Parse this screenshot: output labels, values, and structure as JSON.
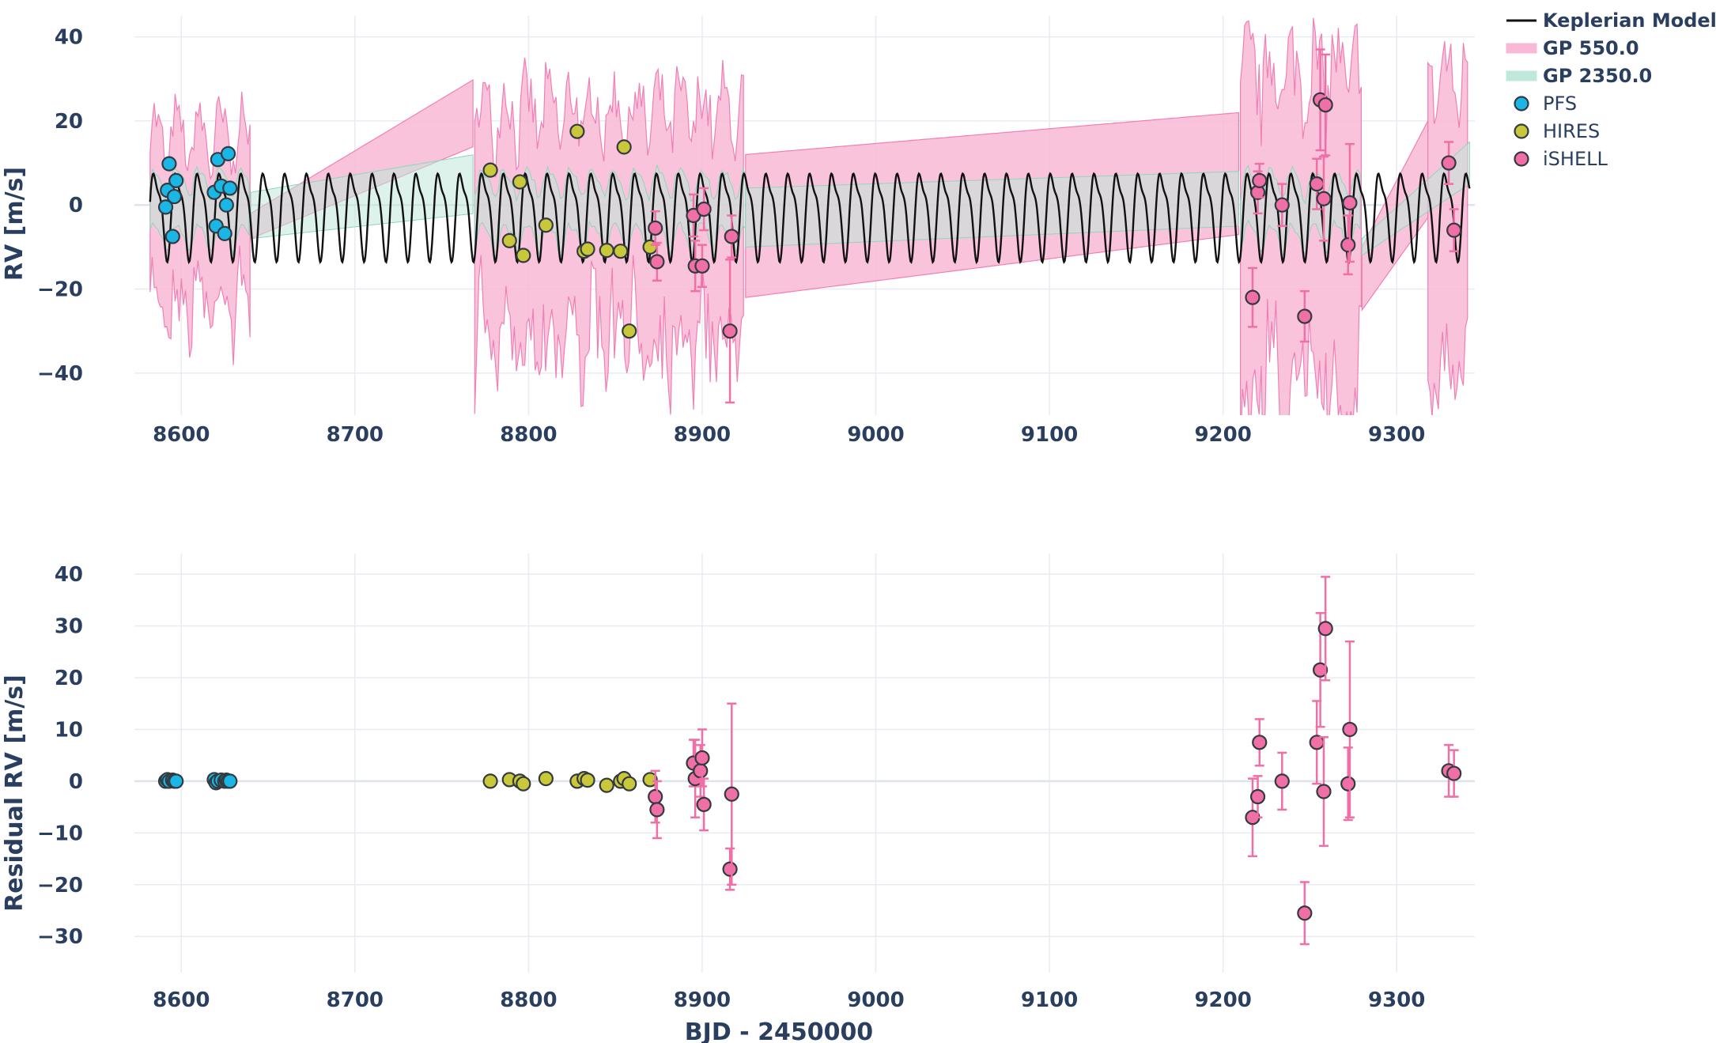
{
  "chart_data": [
    {
      "type": "line",
      "panel": "top",
      "ylabel": "RV [m/s]",
      "xlabel": "",
      "xlim": [
        8573,
        9345
      ],
      "ylim": [
        -50,
        45
      ],
      "x_ticks": [
        8600,
        8700,
        8800,
        8900,
        9000,
        9100,
        9200,
        9300
      ],
      "y_ticks": [
        -40,
        -20,
        0,
        20,
        40
      ],
      "grid": true,
      "legend": {
        "placement": "top-right",
        "entries": [
          {
            "label": "Keplerian Model",
            "bold": true,
            "kind": "line",
            "color": "#111111"
          },
          {
            "label": "GP 550.0",
            "bold": true,
            "kind": "band",
            "color": "#f9b9d6"
          },
          {
            "label": "GP 2350.0",
            "bold": true,
            "kind": "band",
            "color": "#bfe8d8"
          },
          {
            "label": "PFS",
            "bold": false,
            "kind": "marker",
            "color": "#1ab7e6"
          },
          {
            "label": "HIRES",
            "bold": false,
            "kind": "marker",
            "color": "#c8c83a"
          },
          {
            "label": "iSHELL",
            "bold": false,
            "kind": "marker",
            "color": "#ef6fa6"
          }
        ]
      },
      "model": {
        "name": "Keplerian Model",
        "x_start": 8582,
        "x_end": 9342,
        "period_days": 12.6,
        "amplitude": 12.5,
        "offset": -1.5,
        "color": "#111111"
      },
      "gp_bands": [
        {
          "name": "GP 550.0",
          "color": "#f9b9d6",
          "edge_color": "#f07fb5",
          "segments": [
            {
              "x": [
                8582,
                8640
              ],
              "note_lower": [
                -5,
                -8
              ],
              "note_upper": [
                5,
                8
              ]
            },
            {
              "x": [
                8640,
                8769
              ],
              "upper": [
                -2,
                30
              ],
              "lower": [
                -8,
                14
              ]
            },
            {
              "x": [
                8769,
                8925
              ],
              "upper": [
                8,
                8
              ],
              "lower": [
                -12,
                -12
              ]
            },
            {
              "x": [
                8925,
                9210
              ],
              "upper": [
                12,
                22
              ],
              "lower": [
                -22,
                -7
              ]
            },
            {
              "x": [
                9210,
                9280
              ],
              "upper": [
                10,
                10
              ],
              "lower": [
                -15,
                -15
              ]
            },
            {
              "x": [
                9280,
                9342
              ],
              "upper": [
                -10,
                25
              ],
              "lower": [
                -25,
                0
              ]
            }
          ]
        },
        {
          "name": "GP 2350.0",
          "color": "#bfe8d8",
          "edge_color": "#8ed6bb"
        }
      ],
      "series": [
        {
          "name": "PFS",
          "color": "#1ab7e6",
          "points": [
            [
              8591,
              -0.5
            ],
            [
              8592,
              3.5
            ],
            [
              8593,
              9.8
            ],
            [
              8595,
              -7.5
            ],
            [
              8596,
              2.0
            ],
            [
              8597,
              5.8
            ],
            [
              8619,
              3.0
            ],
            [
              8620,
              -5.0
            ],
            [
              8621,
              10.8
            ],
            [
              8623,
              4.5
            ],
            [
              8625,
              -6.8
            ],
            [
              8626,
              0.0
            ],
            [
              8627,
              12.2
            ],
            [
              8628,
              4.0
            ]
          ]
        },
        {
          "name": "HIRES",
          "color": "#c8c83a",
          "points": [
            [
              8778,
              8.3
            ],
            [
              8789,
              -8.5
            ],
            [
              8795,
              5.5
            ],
            [
              8797,
              -12.0
            ],
            [
              8810,
              -4.8
            ],
            [
              8828,
              17.5
            ],
            [
              8832,
              -11.0
            ],
            [
              8834,
              -10.5
            ],
            [
              8845,
              -10.8
            ],
            [
              8853,
              -11.0
            ],
            [
              8855,
              13.8
            ],
            [
              8858,
              -30.0
            ],
            [
              8870,
              -10.0
            ]
          ]
        },
        {
          "name": "iSHELL",
          "color": "#ef6fa6",
          "points": [
            [
              8873,
              -5.5,
              4
            ],
            [
              8874,
              -13.5,
              4.5
            ],
            [
              8895,
              -2.5,
              5
            ],
            [
              8896,
              -14.5,
              6
            ],
            [
              8900,
              -14.5,
              5
            ],
            [
              8901,
              -1.0,
              5
            ],
            [
              8916,
              -30.0,
              17
            ],
            [
              8917,
              -7.5,
              5
            ],
            [
              9217,
              -22.0,
              7
            ],
            [
              9220,
              3.0,
              5
            ],
            [
              9221,
              5.8,
              4
            ],
            [
              9234,
              0.0,
              5
            ],
            [
              9247,
              -26.5,
              6
            ],
            [
              9254,
              5.0,
              6
            ],
            [
              9256,
              25.0,
              12
            ],
            [
              9258,
              1.5,
              10
            ],
            [
              9259,
              23.8,
              12
            ],
            [
              9272,
              -9.5,
              7
            ],
            [
              9273,
              0.5,
              14
            ],
            [
              9330,
              10.0,
              5
            ],
            [
              9333,
              -6.0,
              5
            ]
          ]
        }
      ]
    },
    {
      "type": "scatter",
      "panel": "bottom",
      "ylabel": "Residual RV [m/s]",
      "xlabel": "BJD - 2450000",
      "xlim": [
        8573,
        9345
      ],
      "ylim": [
        -37,
        44
      ],
      "x_ticks": [
        8600,
        8700,
        8800,
        8900,
        9000,
        9100,
        9200,
        9300
      ],
      "y_ticks": [
        -30,
        -20,
        -10,
        0,
        10,
        20,
        30,
        40
      ],
      "grid": true,
      "series": [
        {
          "name": "PFS",
          "color": "#1ab7e6",
          "points": [
            [
              8591,
              0.0
            ],
            [
              8592,
              0.3
            ],
            [
              8593,
              0.0
            ],
            [
              8595,
              0.2
            ],
            [
              8596,
              0.0
            ],
            [
              8597,
              0.0
            ],
            [
              8619,
              0.3
            ],
            [
              8620,
              -0.3
            ],
            [
              8621,
              0.0
            ],
            [
              8623,
              0.2
            ],
            [
              8625,
              0.0
            ],
            [
              8626,
              0.2
            ],
            [
              8627,
              0.0
            ],
            [
              8628,
              0.0
            ]
          ]
        },
        {
          "name": "HIRES",
          "color": "#c8c83a",
          "points": [
            [
              8778,
              0.0
            ],
            [
              8789,
              0.3
            ],
            [
              8795,
              0.0
            ],
            [
              8797,
              -0.5
            ],
            [
              8810,
              0.5
            ],
            [
              8828,
              0.0
            ],
            [
              8832,
              0.5
            ],
            [
              8834,
              0.2
            ],
            [
              8845,
              -0.8
            ],
            [
              8853,
              0.0
            ],
            [
              8855,
              0.5
            ],
            [
              8858,
              -0.5
            ],
            [
              8870,
              0.3
            ]
          ]
        },
        {
          "name": "iSHELL",
          "color": "#ef6fa6",
          "points": [
            [
              8873,
              -3.0,
              5
            ],
            [
              8874,
              -5.5,
              5.5
            ],
            [
              8895,
              3.5,
              4.5
            ],
            [
              8896,
              0.5,
              7.5
            ],
            [
              8899,
              2.0,
              5
            ],
            [
              8900,
              4.5,
              5.5
            ],
            [
              8901,
              -4.5,
              5
            ],
            [
              8916,
              -17.0,
              4
            ],
            [
              8917,
              -2.5,
              17.5
            ],
            [
              9217,
              -7.0,
              7.5
            ],
            [
              9220,
              -3.0,
              4
            ],
            [
              9221,
              7.5,
              4.5
            ],
            [
              9234,
              0.0,
              5.5
            ],
            [
              9254,
              7.5,
              8
            ],
            [
              9256,
              21.5,
              11
            ],
            [
              9258,
              -2.0,
              10.5
            ],
            [
              9259,
              29.5,
              10
            ],
            [
              9247,
              -25.5,
              6
            ],
            [
              9272,
              -0.5,
              7
            ],
            [
              9273,
              10.0,
              17
            ],
            [
              9330,
              2.0,
              5
            ],
            [
              9333,
              1.5,
              4.5
            ]
          ]
        }
      ]
    }
  ]
}
